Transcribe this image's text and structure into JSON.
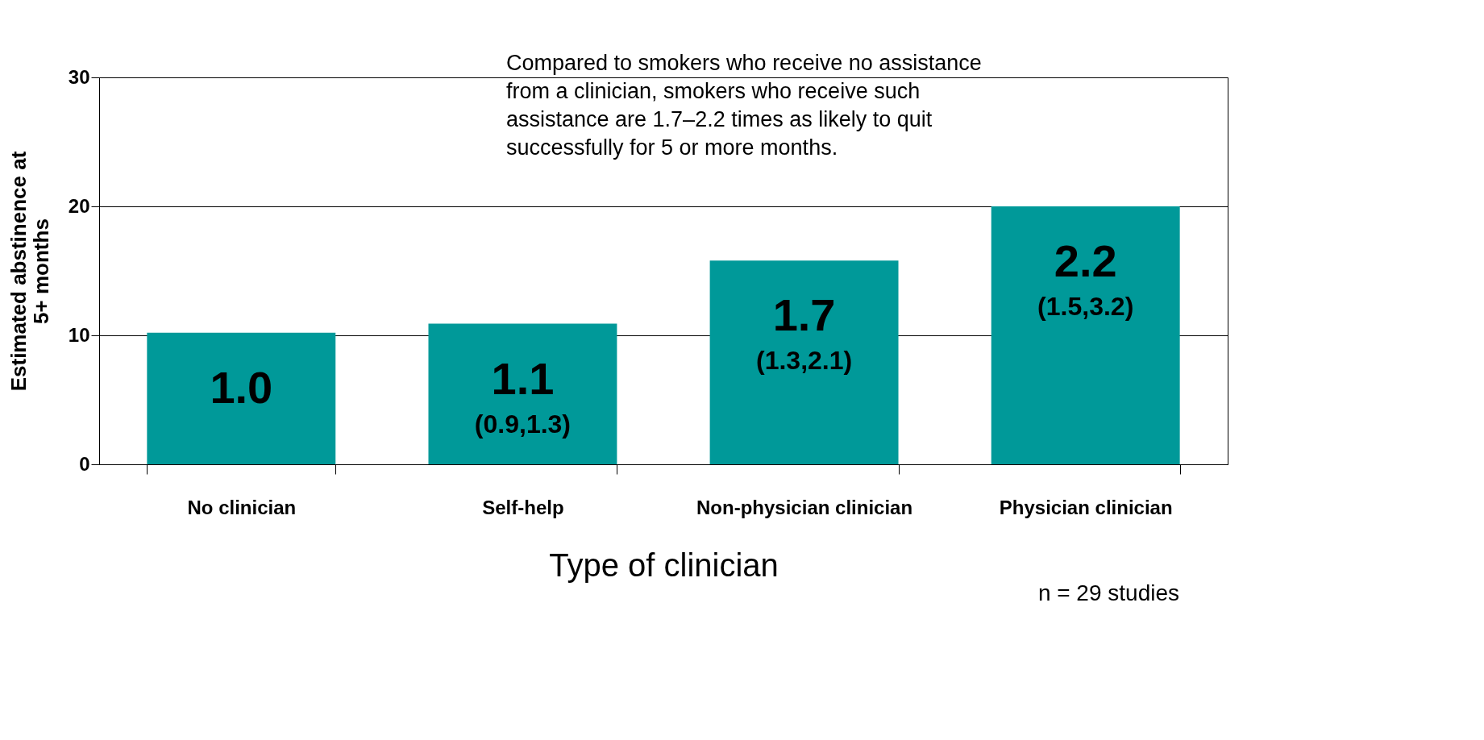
{
  "chart_data": {
    "type": "bar",
    "xlabel": "Type of clinician",
    "ylabel": "Estimated abstinence at 5+ months",
    "categories": [
      "No clinician",
      "Self-help",
      "Non-physician clinician",
      "Physician clinician"
    ],
    "values": [
      10.2,
      10.9,
      15.8,
      20.0
    ],
    "color": "#009999",
    "ylim": [
      0,
      30
    ],
    "yticks": [
      0,
      10,
      20,
      30
    ],
    "grid": "y",
    "annotations": [
      "1.0",
      "1.1 (0.9,1.3)",
      "1.7 (1.3,2.1)",
      "2.2 (1.5,3.2)",
      "Compared to smokers who receive no assistance from a clinician, smokers who receive such assistance are 1.7–2.2 times as likely to quit successfully for 5 or more months.",
      "n = 29 studies"
    ]
  }
}
